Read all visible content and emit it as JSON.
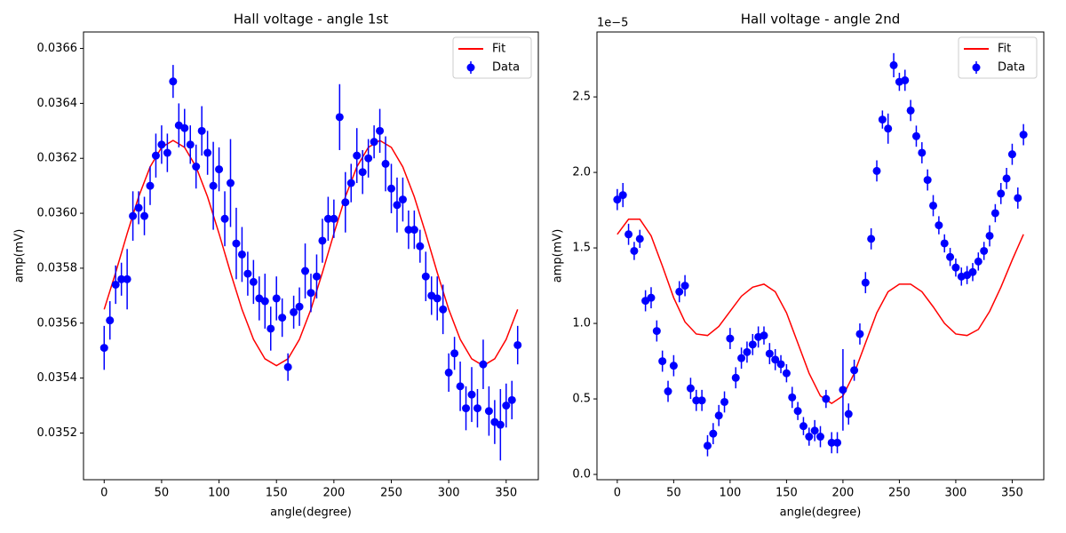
{
  "chart_data": [
    {
      "type": "errorbar",
      "title": "Hall voltage - angle 1st",
      "x_label": "angle(degree)",
      "y_label": "amp(mV)",
      "xlim": [
        -18,
        378
      ],
      "ylim": [
        0.03503,
        0.03666
      ],
      "xticks": [
        0,
        50,
        100,
        150,
        200,
        250,
        300,
        350
      ],
      "yticks": [
        0.0352,
        0.0354,
        0.0356,
        0.0358,
        {
          "value": 0.036,
          "label": "0.0360"
        },
        0.0362,
        0.0364,
        0.0366
      ],
      "legend": "upper right",
      "series": [
        {
          "name": "Fit",
          "color": "#ff0000",
          "style": "line",
          "x": [
            0,
            10,
            20,
            30,
            40,
            50,
            60,
            70,
            80,
            90,
            100,
            110,
            120,
            130,
            140,
            150,
            160,
            170,
            180,
            190,
            200,
            210,
            220,
            230,
            240,
            250,
            260,
            270,
            280,
            290,
            300,
            310,
            320,
            330,
            340,
            350,
            360
          ],
          "values": [
            0.03565,
            0.035784,
            0.035926,
            0.03606,
            0.036169,
            0.03624,
            0.036265,
            0.03624,
            0.036169,
            0.03606,
            0.035926,
            0.035784,
            0.03565,
            0.035541,
            0.03547,
            0.035445,
            0.03547,
            0.035541,
            0.03565,
            0.035784,
            0.035926,
            0.03606,
            0.036169,
            0.03624,
            0.036265,
            0.03624,
            0.036169,
            0.03606,
            0.035926,
            0.035784,
            0.03565,
            0.035541,
            0.03547,
            0.035445,
            0.03547,
            0.035541,
            0.03565
          ]
        },
        {
          "name": "Data",
          "color": "#0000ff",
          "style": "errorbar",
          "x": [
            0,
            5,
            10,
            15,
            20,
            25,
            30,
            35,
            40,
            45,
            50,
            55,
            60,
            65,
            70,
            75,
            80,
            85,
            90,
            95,
            100,
            105,
            110,
            115,
            120,
            125,
            130,
            135,
            140,
            145,
            150,
            155,
            160,
            165,
            170,
            175,
            180,
            185,
            190,
            195,
            200,
            205,
            210,
            215,
            220,
            225,
            230,
            235,
            240,
            245,
            250,
            255,
            260,
            265,
            270,
            275,
            280,
            285,
            290,
            295,
            300,
            305,
            310,
            315,
            320,
            325,
            330,
            335,
            340,
            345,
            350,
            355,
            360
          ],
          "values": [
            0.03551,
            0.03561,
            0.03574,
            0.03576,
            0.03576,
            0.03599,
            0.03602,
            0.03599,
            0.0361,
            0.03621,
            0.03625,
            0.03622,
            0.03648,
            0.03632,
            0.03631,
            0.03625,
            0.03617,
            0.0363,
            0.03622,
            0.0361,
            0.03616,
            0.03598,
            0.03611,
            0.03589,
            0.03585,
            0.03578,
            0.03575,
            0.03569,
            0.03568,
            0.03558,
            0.03569,
            0.03562,
            0.03544,
            0.03564,
            0.03566,
            0.03579,
            0.03571,
            0.03577,
            0.0359,
            0.03598,
            0.03598,
            0.03635,
            0.03604,
            0.03611,
            0.03621,
            0.03615,
            0.0362,
            0.03626,
            0.0363,
            0.03618,
            0.03609,
            0.03603,
            0.03605,
            0.03594,
            0.03594,
            0.03588,
            0.03577,
            0.0357,
            0.03569,
            0.03565,
            0.03542,
            0.03549,
            0.03537,
            0.03529,
            0.03534,
            0.03529,
            0.03545,
            0.03528,
            0.03524,
            0.03523,
            0.0353,
            0.03532,
            0.03552
          ],
          "errors": [
            8e-05,
            7e-05,
            7e-05,
            6e-05,
            0.00011,
            9e-05,
            6e-05,
            7e-05,
            7e-05,
            8e-05,
            7e-05,
            7e-05,
            6e-05,
            8e-05,
            7e-05,
            7e-05,
            8e-05,
            9e-05,
            8e-05,
            0.00016,
            8e-05,
            0.0001,
            0.00016,
            0.00013,
            0.0001,
            8e-05,
            8e-05,
            8e-05,
            0.0001,
            8e-05,
            8e-05,
            7e-05,
            5e-05,
            6e-05,
            7e-05,
            0.0001,
            7e-05,
            8e-05,
            8e-05,
            8e-05,
            7e-05,
            0.00012,
            0.00011,
            7e-05,
            0.0001,
            8e-05,
            7e-05,
            6e-05,
            8e-05,
            0.0001,
            9e-05,
            0.0001,
            8e-05,
            7e-05,
            7e-05,
            6e-05,
            9e-05,
            7e-05,
            8e-05,
            9e-05,
            7e-05,
            6e-05,
            9e-05,
            8e-05,
            0.0001,
            7e-05,
            9e-05,
            9e-05,
            8e-05,
            0.00013,
            8e-05,
            7e-05,
            7e-05
          ]
        }
      ]
    },
    {
      "type": "errorbar",
      "title": "Hall voltage - angle 2nd",
      "x_label": "angle(degree)",
      "y_label": "amp(mV)",
      "offset_label": "1e−5",
      "xlim": [
        -18,
        378
      ],
      "ylim": [
        -0.035,
        2.93
      ],
      "xticks": [
        0,
        50,
        100,
        150,
        200,
        250,
        300,
        350
      ],
      "yticks": [
        {
          "value": 0,
          "label": "0.0"
        },
        0.5,
        {
          "value": 1,
          "label": "1.0"
        },
        1.5,
        {
          "value": 2,
          "label": "2.0"
        },
        2.5
      ],
      "legend": "upper right",
      "series": [
        {
          "name": "Fit",
          "color": "#ff0000",
          "style": "line",
          "x": [
            0,
            10,
            20,
            30,
            40,
            50,
            60,
            70,
            80,
            90,
            100,
            110,
            120,
            130,
            140,
            150,
            160,
            170,
            180,
            190,
            200,
            210,
            220,
            230,
            240,
            250,
            260,
            270,
            280,
            290,
            300,
            310,
            320,
            330,
            340,
            350,
            360
          ],
          "values": [
            1.59,
            1.69,
            1.69,
            1.58,
            1.38,
            1.17,
            1.01,
            0.93,
            0.92,
            0.98,
            1.08,
            1.18,
            1.24,
            1.26,
            1.21,
            1.07,
            0.87,
            0.67,
            0.52,
            0.47,
            0.52,
            0.67,
            0.87,
            1.07,
            1.21,
            1.26,
            1.26,
            1.21,
            1.11,
            1.0,
            0.93,
            0.92,
            0.96,
            1.08,
            1.24,
            1.42,
            1.59
          ]
        },
        {
          "name": "Data",
          "color": "#0000ff",
          "style": "errorbar",
          "x": [
            0,
            5,
            10,
            15,
            20,
            25,
            30,
            35,
            40,
            45,
            50,
            55,
            60,
            65,
            70,
            75,
            80,
            85,
            90,
            95,
            100,
            105,
            110,
            115,
            120,
            125,
            130,
            135,
            140,
            145,
            150,
            155,
            160,
            165,
            170,
            175,
            180,
            185,
            190,
            195,
            200,
            205,
            210,
            215,
            220,
            225,
            230,
            235,
            240,
            245,
            250,
            255,
            260,
            265,
            270,
            275,
            280,
            285,
            290,
            295,
            300,
            305,
            310,
            315,
            320,
            325,
            330,
            335,
            340,
            345,
            350,
            355,
            360
          ],
          "values": [
            1.82,
            1.85,
            1.59,
            1.48,
            1.56,
            1.15,
            1.17,
            0.95,
            0.75,
            0.55,
            0.72,
            1.21,
            1.25,
            0.57,
            0.49,
            0.49,
            0.19,
            0.27,
            0.39,
            0.48,
            0.9,
            0.64,
            0.77,
            0.81,
            0.86,
            0.91,
            0.92,
            0.8,
            0.76,
            0.73,
            0.67,
            0.51,
            0.42,
            0.32,
            0.25,
            0.29,
            0.25,
            0.5,
            0.21,
            0.21,
            0.56,
            0.4,
            0.69,
            0.93,
            1.27,
            1.56,
            2.01,
            2.35,
            2.29,
            2.71,
            2.6,
            2.61,
            2.41,
            2.24,
            2.13,
            1.95,
            1.78,
            1.65,
            1.53,
            1.44,
            1.37,
            1.31,
            1.32,
            1.34,
            1.41,
            1.48,
            1.58,
            1.73,
            1.86,
            1.96,
            2.12,
            1.83,
            2.25
          ],
          "errors": [
            0.07,
            0.08,
            0.07,
            0.06,
            0.06,
            0.07,
            0.07,
            0.07,
            0.07,
            0.07,
            0.07,
            0.07,
            0.07,
            0.07,
            0.07,
            0.07,
            0.07,
            0.07,
            0.07,
            0.07,
            0.07,
            0.07,
            0.07,
            0.07,
            0.07,
            0.07,
            0.06,
            0.07,
            0.07,
            0.06,
            0.06,
            0.07,
            0.06,
            0.06,
            0.06,
            0.07,
            0.07,
            0.06,
            0.07,
            0.07,
            0.27,
            0.07,
            0.07,
            0.07,
            0.07,
            0.07,
            0.07,
            0.06,
            0.1,
            0.08,
            0.06,
            0.07,
            0.07,
            0.07,
            0.07,
            0.07,
            0.07,
            0.06,
            0.06,
            0.06,
            0.06,
            0.06,
            0.06,
            0.06,
            0.06,
            0.06,
            0.07,
            0.06,
            0.07,
            0.07,
            0.07,
            0.07,
            0.07
          ]
        }
      ]
    }
  ]
}
